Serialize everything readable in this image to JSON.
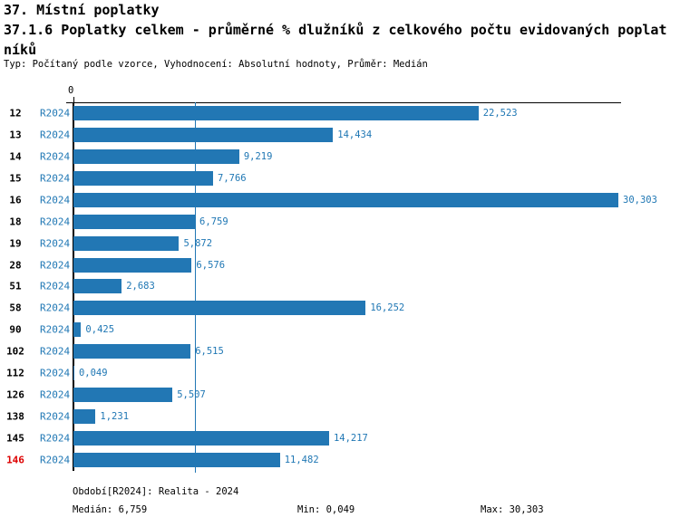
{
  "header": {
    "title": "37. Místní poplatky",
    "subtitle_line1": "37.1.6 Poplatky celkem - průměrné % dlužníků z celkového počtu evidovaných poplat",
    "subtitle_line2": "níků",
    "meta": "Typ: Počítaný podle vzorce, Vyhodnocení: Absolutní hodnoty, Průměr: Medián"
  },
  "chart_data": {
    "type": "bar",
    "orientation": "horizontal",
    "axis_origin_label": "0",
    "series_label": "R2024",
    "categories": [
      "12",
      "13",
      "14",
      "15",
      "16",
      "18",
      "19",
      "28",
      "51",
      "58",
      "90",
      "102",
      "112",
      "126",
      "138",
      "145",
      "146"
    ],
    "values": [
      22.523,
      14.434,
      9.219,
      7.766,
      30.303,
      6.759,
      5.872,
      6.576,
      2.683,
      16.252,
      0.425,
      6.515,
      0.049,
      5.507,
      1.231,
      14.217,
      11.482
    ],
    "value_labels": [
      "22,523",
      "14,434",
      "9,219",
      "7,766",
      "30,303",
      "6,759",
      "5,872",
      "6,576",
      "2,683",
      "16,252",
      "0,425",
      "6,515",
      "0,049",
      "5,507",
      "1,231",
      "14,217",
      "11,482"
    ],
    "highlighted_category": "146",
    "median_value": 6.759,
    "xlim": [
      0,
      30.303
    ],
    "grid": "median-line-only",
    "colors": {
      "bar": "#2277b4",
      "text_blue": "#1f77b4",
      "highlight_red": "#dd0000",
      "axis_black": "#000000"
    }
  },
  "footer": {
    "period": "Období[R2024]: Realita - 2024",
    "median": "Medián: 6,759",
    "min": "Min: 0,049",
    "max": "Max: 30,303"
  }
}
